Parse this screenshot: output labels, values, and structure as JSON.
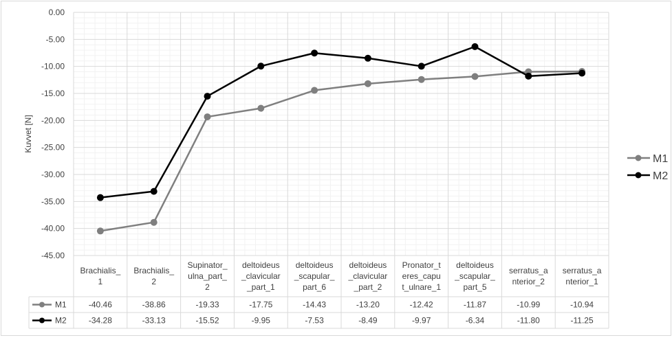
{
  "chart_data": {
    "type": "line",
    "title": "",
    "xlabel": "",
    "ylabel": "Kuvvet [N]",
    "ylim": [
      -45,
      0
    ],
    "yticks": [
      "0.00",
      "-5.00",
      "-10.00",
      "-15.00",
      "-20.00",
      "-25.00",
      "-30.00",
      "-35.00",
      "-40.00",
      "-45.00"
    ],
    "grid": true,
    "legend": "right",
    "data_table": true,
    "categories": [
      [
        "Brachialis_",
        "1"
      ],
      [
        "Brachialis_",
        "2"
      ],
      [
        "Supinator_",
        "ulna_part_",
        "2"
      ],
      [
        "deltoideus",
        "_clavicular",
        "_part_1"
      ],
      [
        "deltoideus",
        "_scapular_",
        "part_6"
      ],
      [
        "deltoideus",
        "_clavicular",
        "_part_2"
      ],
      [
        "Pronator_t",
        "eres_capu",
        "t_ulnare_1"
      ],
      [
        "deltoideus",
        "_scapular_",
        "part_5"
      ],
      [
        "serratus_a",
        "nterior_2"
      ],
      [
        "serratus_a",
        "nterior_1"
      ]
    ],
    "series": [
      {
        "name": "M1",
        "color": "#7f7f7f",
        "values": [
          -40.46,
          -38.86,
          -19.33,
          -17.75,
          -14.43,
          -13.2,
          -12.42,
          -11.87,
          -10.99,
          -10.94
        ],
        "labels": [
          "-40.46",
          "-38.86",
          "-19.33",
          "-17.75",
          "-14.43",
          "-13.20",
          "-12.42",
          "-11.87",
          "-10.99",
          "-10.94"
        ]
      },
      {
        "name": "M2",
        "color": "#000000",
        "values": [
          -34.28,
          -33.13,
          -15.52,
          -9.95,
          -7.53,
          -8.49,
          -9.97,
          -6.34,
          -11.8,
          -11.25
        ],
        "labels": [
          "-34.28",
          "-33.13",
          "-15.52",
          "-9.95",
          "-7.53",
          "-8.49",
          "-9.97",
          "-6.34",
          "-11.80",
          "-11.25"
        ]
      }
    ]
  }
}
